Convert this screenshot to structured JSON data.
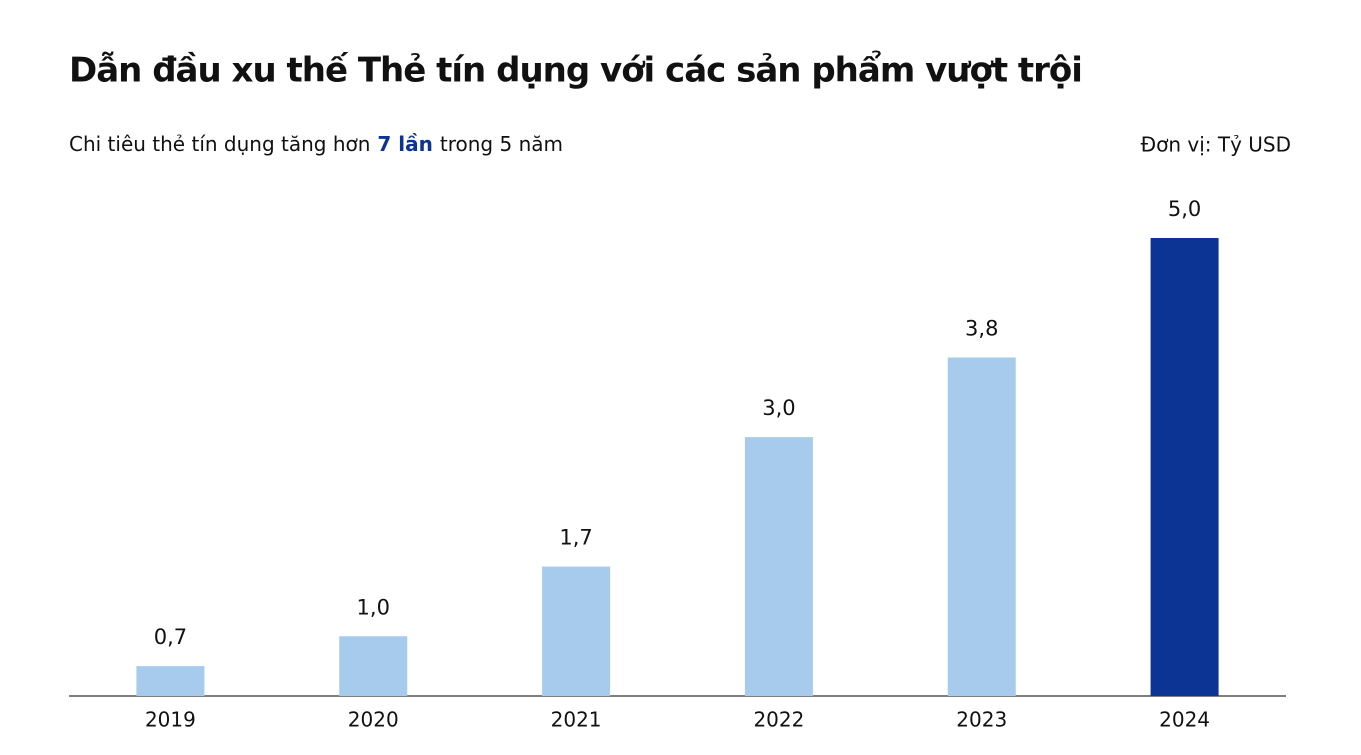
{
  "chart_data": {
    "type": "bar",
    "title": "Dẫn đầu xu thế Thẻ tín dụng với các sản phẩm vượt trội",
    "subtitle_parts": [
      "Chi tiêu thẻ tín dụng tăng hơn",
      "7 lần",
      "trong 5 năm"
    ],
    "unit_label": "Đơn vị: Tỷ USD",
    "categories": [
      "2019",
      "2020",
      "2021",
      "2022",
      "2023",
      "2024"
    ],
    "values": [
      0.7,
      1.0,
      1.7,
      3.0,
      3.8,
      5.0
    ],
    "value_labels": [
      "0,7",
      "1,0",
      "1,7",
      "3,0",
      "3,8",
      "5,0"
    ],
    "colors": [
      "#a7cbec",
      "#a7cbec",
      "#a7cbec",
      "#a7cbec",
      "#a7cbec",
      "#0b3494"
    ],
    "ylim": [
      0.4,
      5.0
    ]
  }
}
